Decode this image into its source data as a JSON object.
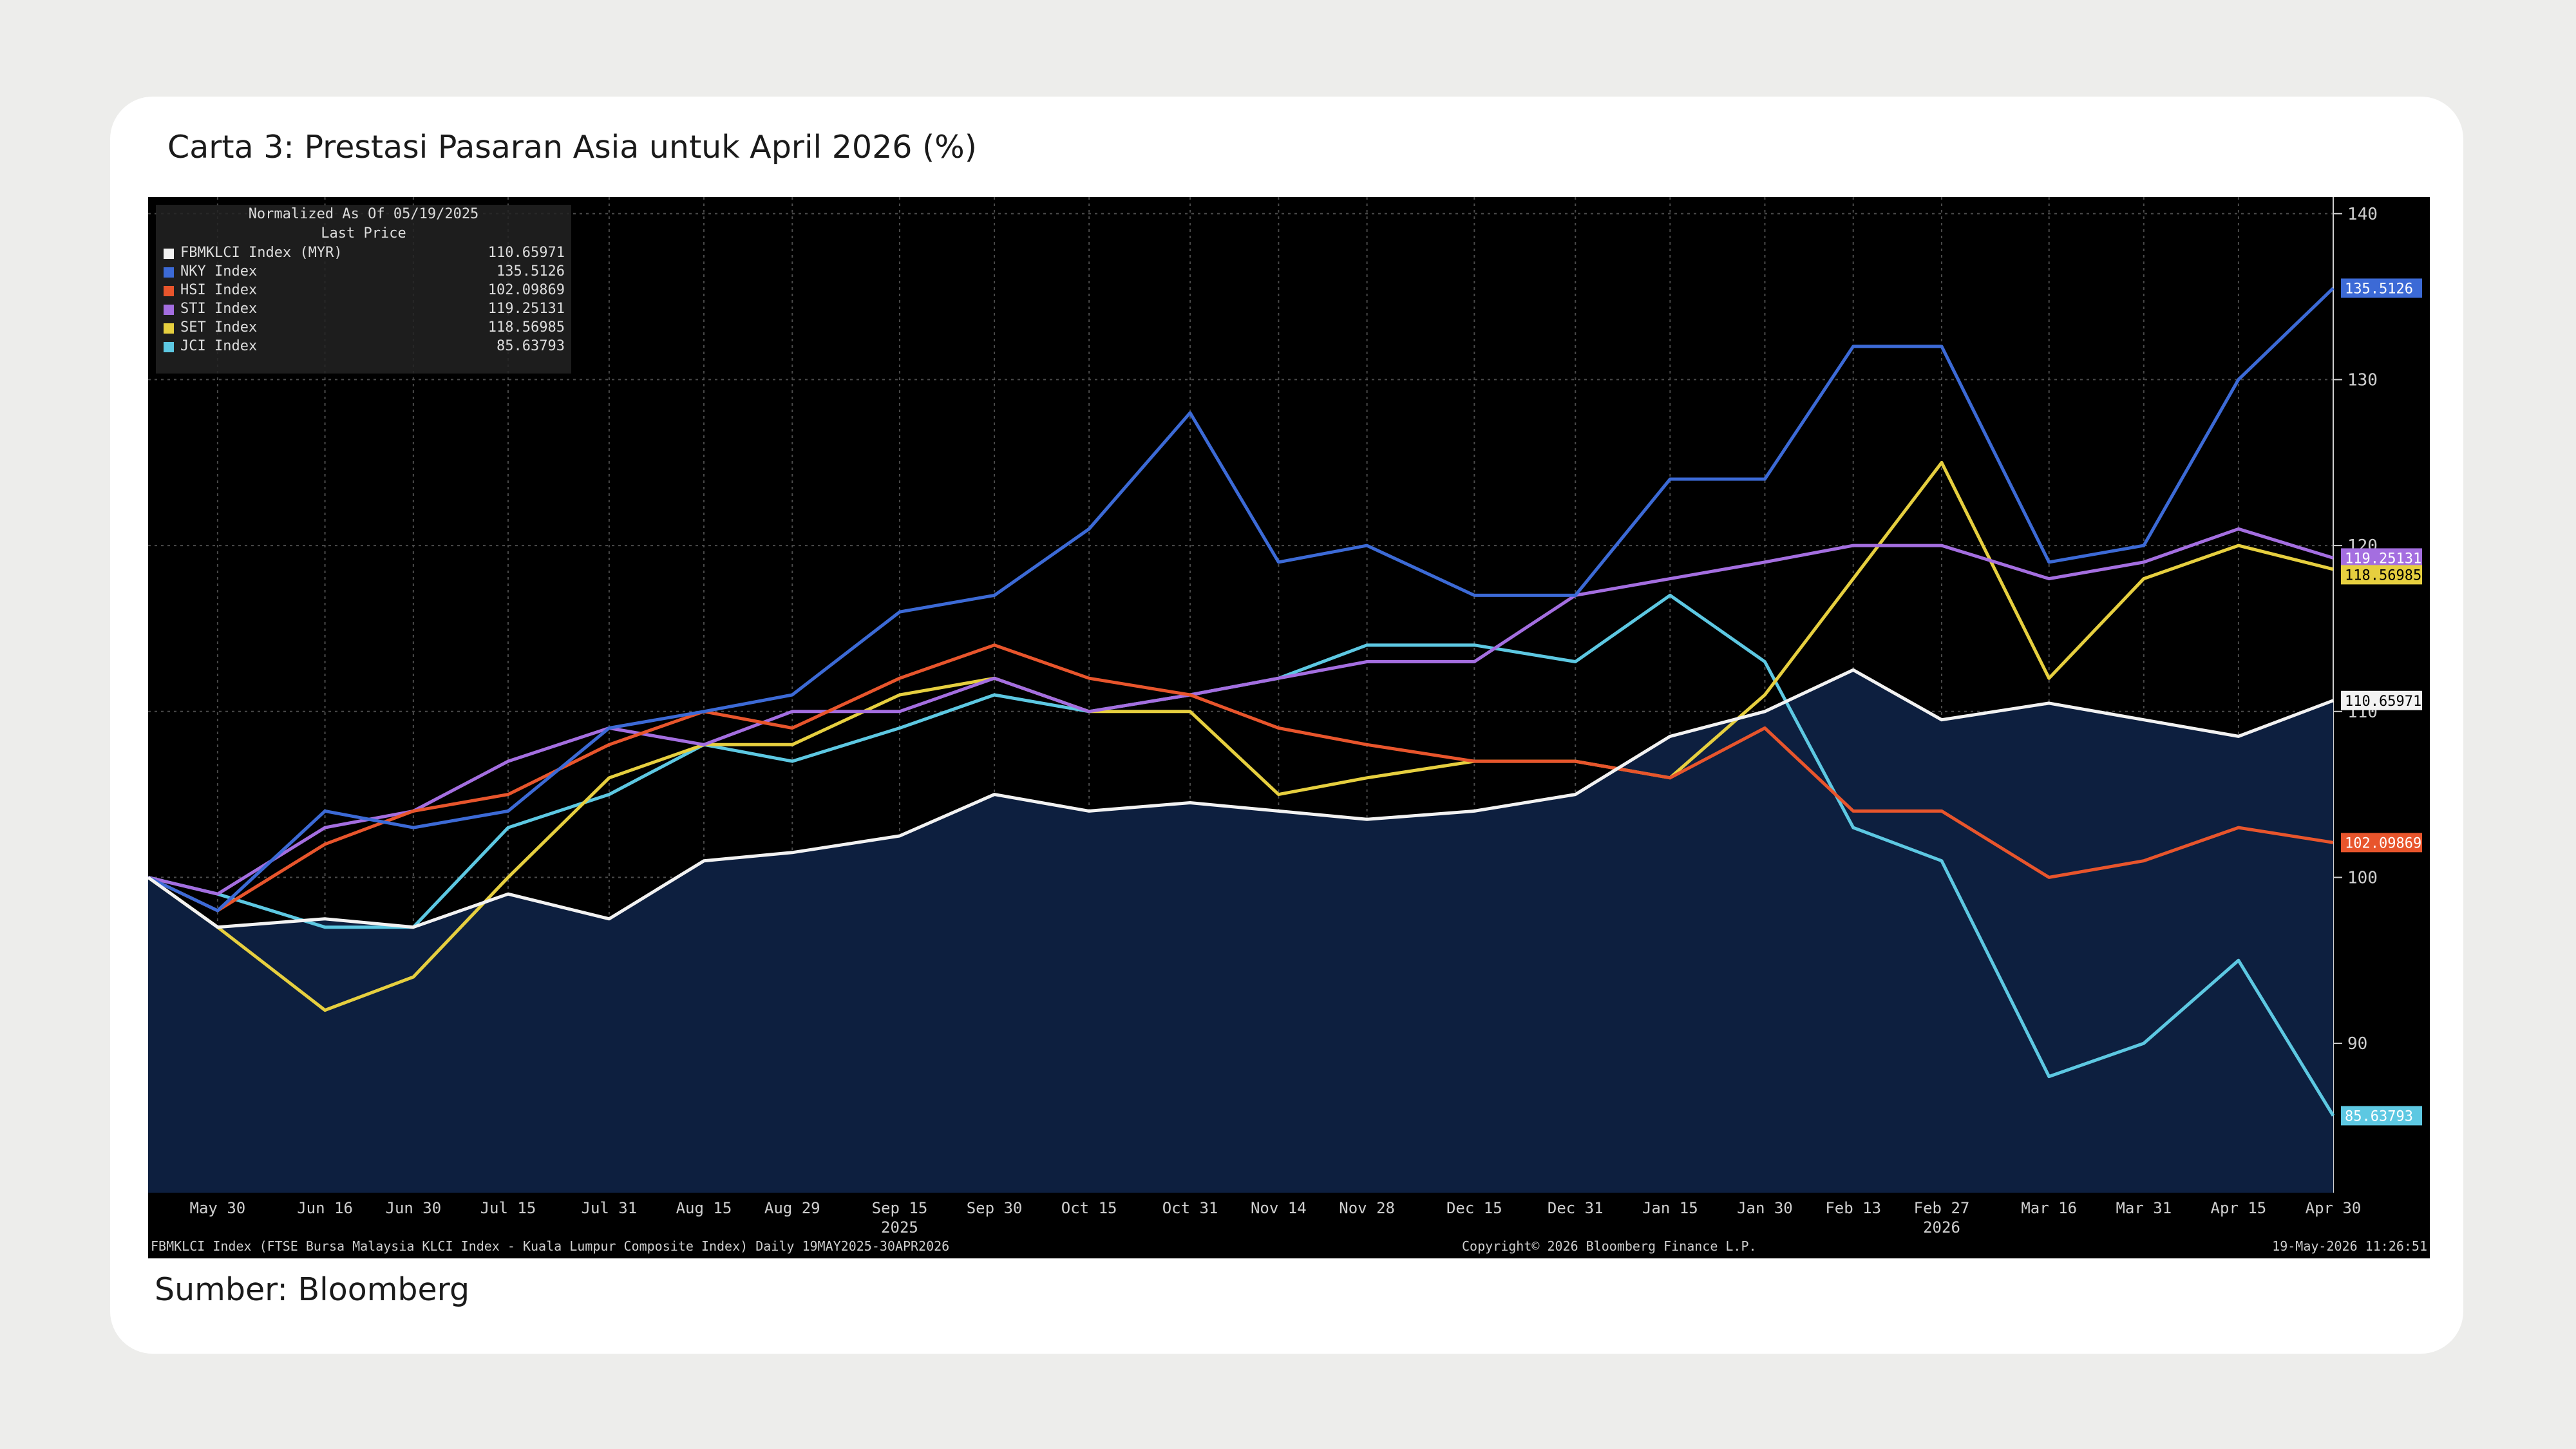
{
  "title": "Carta 3: Prestasi Pasaran Asia untuk April 2026 (%)",
  "source": "Sumber: Bloomberg",
  "legend": {
    "header1": "Normalized As Of 05/19/2025",
    "header2": "Last Price"
  },
  "footer": {
    "left": "FBMKLCI Index (FTSE Bursa Malaysia KLCI Index - Kuala Lumpur Composite Index) Daily 19MAY2025-30APR2026",
    "center": "Copyright© 2026 Bloomberg Finance L.P.",
    "right": "19-May-2026 11:26:51"
  },
  "colors": {
    "background": "#000000",
    "area_fill": "#0d1f3f",
    "grid": "#4a4a4a",
    "axis_text": "#cfcfcf"
  },
  "chart_data": {
    "type": "line",
    "x": [
      "2025-05-19",
      "2025-05-30",
      "2025-06-16",
      "2025-06-30",
      "2025-07-15",
      "2025-07-31",
      "2025-08-15",
      "2025-08-29",
      "2025-09-15",
      "2025-09-30",
      "2025-10-15",
      "2025-10-31",
      "2025-11-14",
      "2025-11-28",
      "2025-12-15",
      "2025-12-31",
      "2026-01-15",
      "2026-01-30",
      "2026-02-13",
      "2026-02-27",
      "2026-03-16",
      "2026-03-31",
      "2026-04-15",
      "2026-04-30"
    ],
    "x_ticks": [
      {
        "date": "2025-05-30",
        "label": "May 30"
      },
      {
        "date": "2025-06-16",
        "label": "Jun 16"
      },
      {
        "date": "2025-06-30",
        "label": "Jun 30"
      },
      {
        "date": "2025-07-15",
        "label": "Jul 15"
      },
      {
        "date": "2025-07-31",
        "label": "Jul 31"
      },
      {
        "date": "2025-08-15",
        "label": "Aug 15"
      },
      {
        "date": "2025-08-29",
        "label": "Aug 29"
      },
      {
        "date": "2025-09-15",
        "label": "Sep 15"
      },
      {
        "date": "2025-09-30",
        "label": "Sep 30"
      },
      {
        "date": "2025-10-15",
        "label": "Oct 15"
      },
      {
        "date": "2025-10-31",
        "label": "Oct 31"
      },
      {
        "date": "2025-11-14",
        "label": "Nov 14"
      },
      {
        "date": "2025-11-28",
        "label": "Nov 28"
      },
      {
        "date": "2025-12-15",
        "label": "Dec 15"
      },
      {
        "date": "2025-12-31",
        "label": "Dec 31"
      },
      {
        "date": "2026-01-15",
        "label": "Jan 15"
      },
      {
        "date": "2026-01-30",
        "label": "Jan 30"
      },
      {
        "date": "2026-02-13",
        "label": "Feb 13"
      },
      {
        "date": "2026-02-27",
        "label": "Feb 27"
      },
      {
        "date": "2026-03-16",
        "label": "Mar 16"
      },
      {
        "date": "2026-03-31",
        "label": "Mar 31"
      },
      {
        "date": "2026-04-15",
        "label": "Apr 15"
      },
      {
        "date": "2026-04-30",
        "label": "Apr 30"
      }
    ],
    "year_labels": [
      {
        "date": "2025-09-15",
        "label": "2025"
      },
      {
        "date": "2026-02-27",
        "label": "2026"
      }
    ],
    "ylim": [
      81,
      141
    ],
    "yticks": [
      90,
      100,
      110,
      120,
      130,
      140
    ],
    "grid": true,
    "legend_position": "top-left",
    "series": [
      {
        "name": "FBMKLCI Index (MYR)",
        "last": "110.65971",
        "color": "#f2f2f2",
        "area": true,
        "values": [
          100,
          97,
          97.5,
          97,
          99,
          97.5,
          101,
          101.5,
          102.5,
          105,
          104,
          104.5,
          104,
          103.5,
          104,
          105,
          108.5,
          110,
          112.5,
          109.5,
          110.5,
          109.5,
          108.5,
          110.66
        ]
      },
      {
        "name": "NKY Index",
        "last": "135.5126",
        "color": "#3c6ad6",
        "values": [
          100,
          98,
          104,
          103,
          104,
          109,
          110,
          111,
          116,
          117,
          121,
          128,
          119,
          120,
          117,
          117,
          124,
          124,
          132,
          132,
          119,
          120,
          130,
          135.51
        ]
      },
      {
        "name": "HSI Index",
        "last": "102.09869",
        "color": "#e8552c",
        "values": [
          100,
          98,
          102,
          104,
          105,
          108,
          110,
          109,
          112,
          114,
          112,
          111,
          109,
          108,
          107,
          107,
          106,
          109,
          104,
          104,
          100,
          101,
          103,
          102.1
        ]
      },
      {
        "name": "STI Index",
        "last": "119.25131",
        "color": "#a46ee0",
        "values": [
          100,
          99,
          103,
          104,
          107,
          109,
          108,
          110,
          110,
          112,
          110,
          111,
          112,
          113,
          113,
          117,
          118,
          119,
          120,
          120,
          118,
          119,
          121,
          119.25
        ]
      },
      {
        "name": "SET Index",
        "last": "118.56985",
        "color": "#e6cf3f",
        "values": [
          100,
          97,
          92,
          94,
          100,
          106,
          108,
          108,
          111,
          112,
          110,
          110,
          105,
          106,
          107,
          107,
          106,
          111,
          118,
          125,
          112,
          118,
          120,
          118.57
        ]
      },
      {
        "name": "JCI Index",
        "last": "85.63793",
        "color": "#5dc8e2",
        "values": [
          100,
          99,
          97,
          97,
          103,
          105,
          108,
          107,
          109,
          111,
          110,
          111,
          112,
          114,
          114,
          113,
          117,
          113,
          103,
          101,
          88,
          90,
          95,
          85.64
        ]
      }
    ]
  }
}
